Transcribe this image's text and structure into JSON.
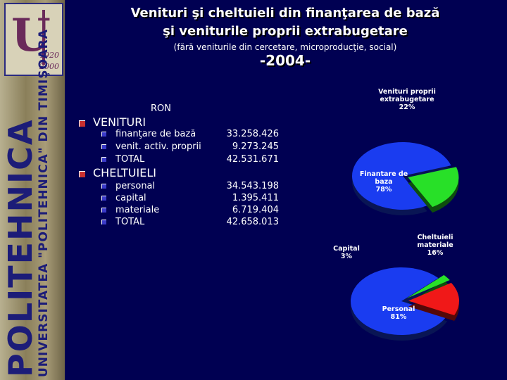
{
  "header": {
    "title_line1": "Venituri şi cheltuieli din finanţarea de bază",
    "title_line2": "şi veniturile proprii extrabugetare",
    "subtitle": "(fără veniturile din cercetare, microproducţie, social)",
    "year": "-2004-"
  },
  "banner": {
    "logo_years": [
      "1920",
      "2000"
    ],
    "big_text": "POLITEHNICA",
    "small_text": "UNIVERSITATEA \"POLITEHNICA\" DIN TIMIŞOARA"
  },
  "table": {
    "unit": "RON",
    "sections": [
      {
        "heading": "VENITURI",
        "rows": [
          {
            "label": "finanţare de bază",
            "value": "33.258.426"
          },
          {
            "label": "venit. activ. proprii",
            "value": "9.273.245"
          },
          {
            "label": "TOTAL",
            "value": "42.531.671"
          }
        ]
      },
      {
        "heading": "CHELTUIELI",
        "rows": [
          {
            "label": "personal",
            "value": "34.543.198"
          },
          {
            "label": "capital",
            "value": "1.395.411"
          },
          {
            "label": "materiale",
            "value": "6.719.404"
          },
          {
            "label": "TOTAL",
            "value": "42.658.013"
          }
        ]
      }
    ]
  },
  "chart_data": [
    {
      "type": "pie",
      "labels": [
        [
          "Finantare de",
          "baza",
          "78%"
        ],
        [
          "Venituri proprii",
          "extrabugetare",
          "22%"
        ]
      ],
      "values": [
        78,
        22
      ],
      "colors": [
        "#1a3cf0",
        "#28e028"
      ]
    },
    {
      "type": "pie",
      "labels": [
        [
          "Personal",
          "81%"
        ],
        [
          "Capital",
          "3%"
        ],
        [
          "Cheltuieli",
          "materiale",
          "16%"
        ]
      ],
      "values": [
        81,
        3,
        16
      ],
      "colors": [
        "#1a3cf0",
        "#28e028",
        "#f01818"
      ]
    }
  ]
}
